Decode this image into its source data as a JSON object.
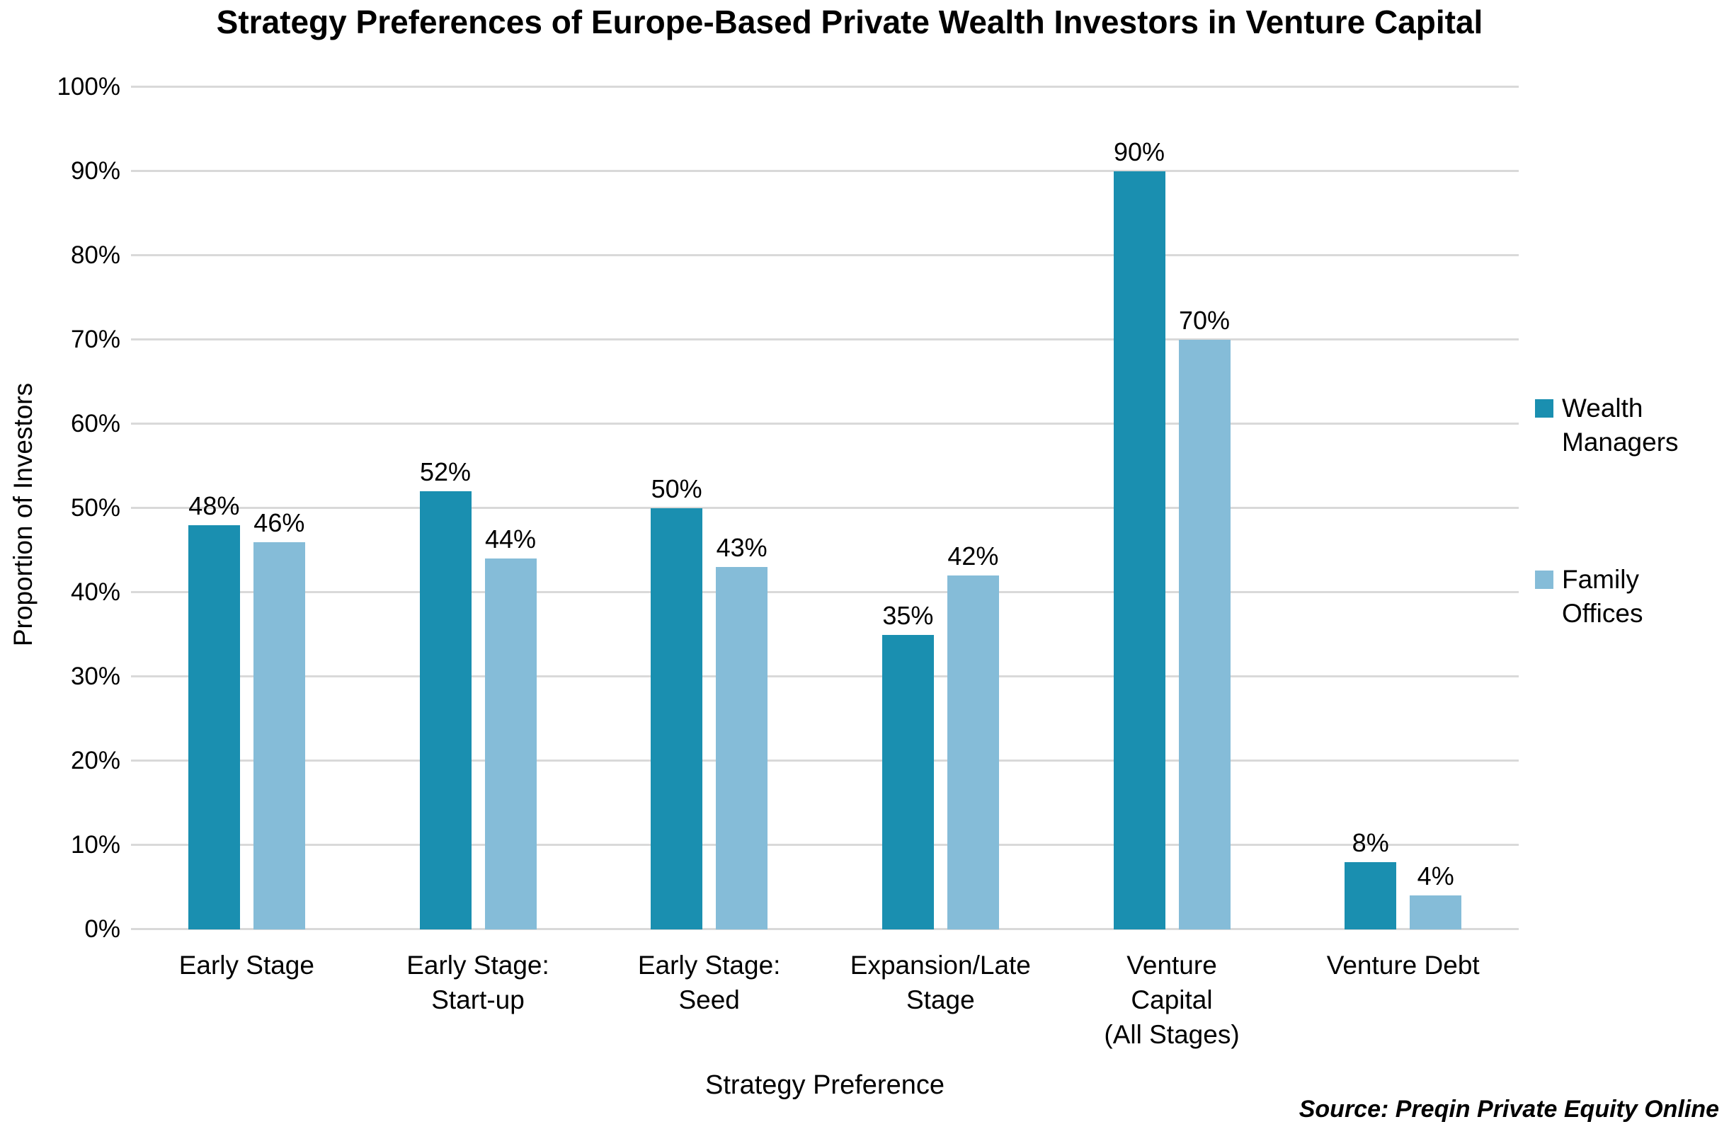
{
  "title": "Strategy Preferences of Europe-Based Private Wealth Investors in Venture Capital",
  "axes": {
    "y_label": "Proportion of Investors",
    "x_label": "Strategy Preference"
  },
  "source": "Source: Preqin Private Equity Online",
  "colors": {
    "wealth_managers": "#1A8FB0",
    "family_offices": "#85BCD8",
    "gridline": "#D9D9D9",
    "text": "#000000"
  },
  "chart_data": {
    "type": "bar",
    "title": "Strategy Preferences of Europe-Based Private Wealth Investors in Venture Capital",
    "xlabel": "Strategy Preference",
    "ylabel": "Proportion of Investors",
    "categories": [
      "Early Stage",
      "Early Stage: Start-up",
      "Early Stage: Seed",
      "Expansion/Late Stage",
      "Venture Capital (All Stages)",
      "Venture Debt"
    ],
    "category_lines": [
      [
        "Early Stage"
      ],
      [
        "Early Stage:",
        "Start-up"
      ],
      [
        "Early Stage:",
        "Seed"
      ],
      [
        "Expansion/Late",
        "Stage"
      ],
      [
        "Venture",
        "Capital",
        "(All Stages)"
      ],
      [
        "Venture Debt"
      ]
    ],
    "series": [
      {
        "name": "Wealth Managers",
        "name_lines": [
          "Wealth",
          "Managers"
        ],
        "color_key": "wealth_managers",
        "values": [
          48,
          52,
          50,
          35,
          90,
          8
        ]
      },
      {
        "name": "Family Offices",
        "name_lines": [
          "Family",
          "Offices"
        ],
        "color_key": "family_offices",
        "values": [
          46,
          44,
          43,
          42,
          70,
          4
        ]
      }
    ],
    "value_suffix": "%",
    "ylim": [
      0,
      100
    ],
    "ytick_step": 10,
    "grid": true,
    "legend_position": "right"
  }
}
